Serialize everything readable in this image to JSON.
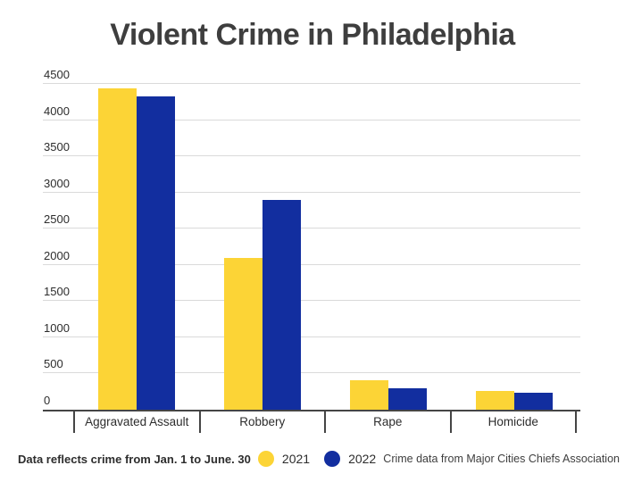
{
  "title": "Violent Crime in Philadelphia",
  "footer": {
    "note": "Data reflects crime from Jan. 1 to June. 30",
    "source": "Crime data from Major Cities Chiefs Association"
  },
  "colors": {
    "series_2021": "#fcd436",
    "series_2022": "#122e9f",
    "axis_line": "#454545",
    "gridline": "#dadada",
    "title_text": "#3e3e3e",
    "label_text": "#2d2d2d"
  },
  "chart_data": {
    "type": "bar",
    "title": "Violent Crime in Philadelphia",
    "categories": [
      "Aggravated Assault",
      "Robbery",
      "Rape",
      "Homicide"
    ],
    "series": [
      {
        "name": "2021",
        "color": "#fcd436",
        "values": [
          4440,
          2090,
          410,
          260
        ]
      },
      {
        "name": "2022",
        "color": "#122e9f",
        "values": [
          4330,
          2900,
          300,
          240
        ]
      }
    ],
    "ylim": [
      0,
      4500
    ],
    "ytick_interval": 500,
    "yticks": [
      0,
      500,
      1000,
      1500,
      2000,
      2500,
      3000,
      3500,
      4000,
      4500
    ],
    "grid": "horizontal",
    "legend_position": "bottom",
    "note": "Data reflects crime from Jan. 1 to June. 30",
    "source": "Crime data from Major Cities Chiefs Association"
  }
}
